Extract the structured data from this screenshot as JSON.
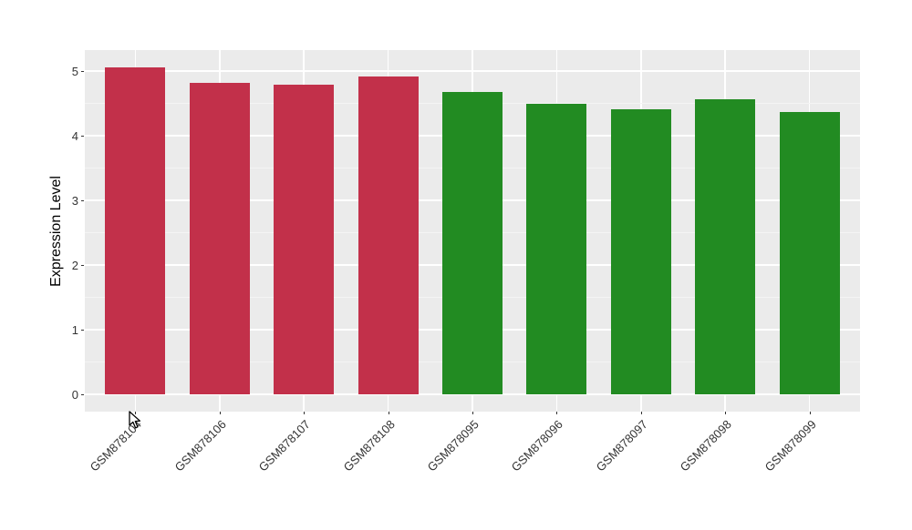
{
  "chart_data": {
    "type": "bar",
    "title": "",
    "xlabel": "",
    "ylabel": "Expression Level",
    "categories": [
      "GSM878104",
      "GSM878106",
      "GSM878107",
      "GSM878108",
      "GSM878095",
      "GSM878096",
      "GSM878097",
      "GSM878098",
      "GSM878099"
    ],
    "values": [
      5.05,
      4.82,
      4.79,
      4.92,
      4.67,
      4.5,
      4.41,
      4.56,
      4.37
    ],
    "bar_colors": [
      "#C2304A",
      "#C2304A",
      "#C2304A",
      "#C2304A",
      "#228B22",
      "#228B22",
      "#228B22",
      "#228B22",
      "#228B22"
    ],
    "y_ticks": [
      0,
      1,
      2,
      3,
      4,
      5
    ],
    "y_minor_ticks": [
      0.5,
      1.5,
      2.5,
      3.5,
      4.5
    ],
    "ylim": [
      -0.27,
      5.32
    ],
    "grid": true,
    "legend_position": "none",
    "x_label_rotation_deg": -45
  },
  "style": {
    "outer_background": "#FFFFFF",
    "panel_background": "#EBEBEB",
    "grid_major_color": "#FFFFFF",
    "grid_minor_color": "#F4F4F4",
    "bar_color_red_group": "#C2304A",
    "bar_color_green_group": "#228B22",
    "axis_text_color": "#333333",
    "axis_title_color": "#000000",
    "tick_mark_color": "#333333"
  },
  "icons": {
    "mouse_pointer": "arrow-pointer-icon"
  }
}
